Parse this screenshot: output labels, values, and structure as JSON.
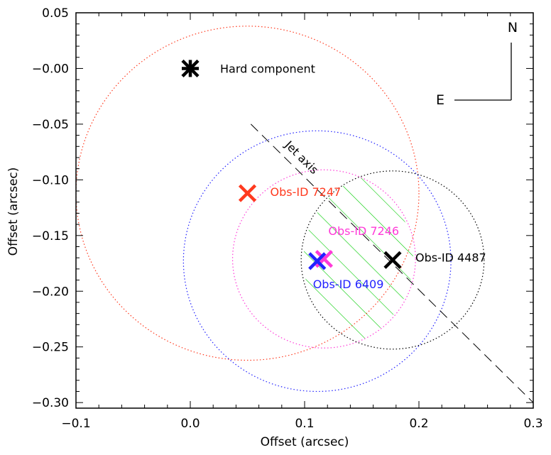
{
  "chart_data": {
    "type": "scatter",
    "title": "",
    "xlabel": "Offset (arcsec)",
    "ylabel": "Offset (arcsec)",
    "xlim": [
      -0.1,
      0.3
    ],
    "ylim": [
      -0.305,
      0.05
    ],
    "xticks": [
      -0.1,
      0.0,
      0.1,
      0.2,
      0.3
    ],
    "xtick_labels": [
      "−0.1",
      "0.0",
      "0.1",
      "0.2",
      "0.3"
    ],
    "yticks": [
      0.05,
      0.0,
      -0.05,
      -0.1,
      -0.15,
      -0.2,
      -0.25,
      -0.3
    ],
    "ytick_labels": [
      "0.05",
      "−0.00",
      "−0.05",
      "−0.10",
      "−0.15",
      "−0.20",
      "−0.25",
      "−0.30"
    ],
    "grid": false,
    "points": [
      {
        "id": "hard",
        "label": "Hard component",
        "x": 0.0,
        "y": 0.0,
        "color": "#000000",
        "marker": "asterisk"
      },
      {
        "id": "7247",
        "label": "Obs-ID 7247",
        "x": 0.05,
        "y": -0.112,
        "color": "#ff3a1f",
        "marker": "x"
      },
      {
        "id": "7246",
        "label": "Obs-ID 7246",
        "x": 0.117,
        "y": -0.171,
        "color": "#ff3ad8",
        "marker": "x"
      },
      {
        "id": "6409",
        "label": "Obs-ID 6409",
        "x": 0.111,
        "y": -0.173,
        "color": "#2222ff",
        "marker": "x"
      },
      {
        "id": "4487",
        "label": "Obs-ID 4487",
        "x": 0.177,
        "y": -0.172,
        "color": "#000000",
        "marker": "x"
      }
    ],
    "circles": [
      {
        "id": "7247",
        "x": 0.05,
        "y": -0.112,
        "r": 0.15,
        "color": "#ff3a1f",
        "style": "dotted"
      },
      {
        "id": "6409",
        "x": 0.111,
        "y": -0.173,
        "r": 0.117,
        "color": "#2222ff",
        "style": "dotted"
      },
      {
        "id": "7246",
        "x": 0.117,
        "y": -0.171,
        "r": 0.08,
        "color": "#ff3ad8",
        "style": "dotted"
      },
      {
        "id": "4487",
        "x": 0.177,
        "y": -0.172,
        "r": 0.08,
        "color": "#000000",
        "style": "dotted"
      }
    ],
    "jet_axis": {
      "label": "Jet axis",
      "x1": 0.053,
      "y1": -0.05,
      "x2": 0.3,
      "y2": -0.3,
      "color": "#000000",
      "style": "dashed"
    },
    "compass": {
      "north": "N",
      "east": "E"
    },
    "overlap_hatch_color": "#00cc00"
  }
}
